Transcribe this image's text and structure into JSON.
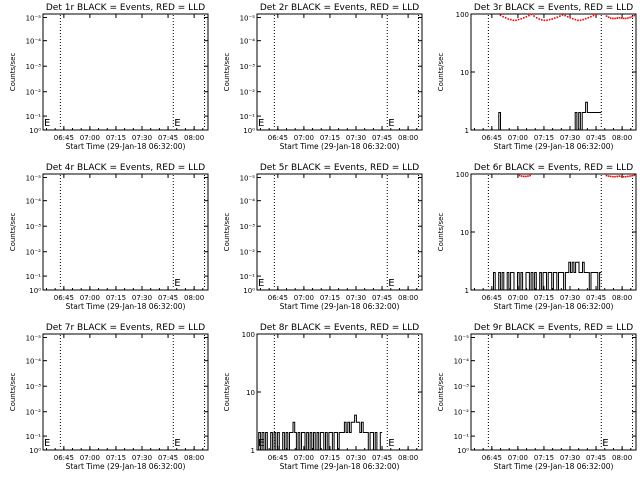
{
  "figure": {
    "background": "#ffffff",
    "colors": {
      "events": "#000000",
      "lld": "#ff0000"
    }
  },
  "chart_data": [
    {
      "type": "line",
      "title": "Det 1r BLACK = Events, RED = LLD",
      "xlabel": "Start Time (29-Jan-18 06:32:00)",
      "ylabel": "Counts/sec",
      "scale": "log",
      "yticks": [
        {
          "label": "10⁰",
          "frac": 0
        },
        {
          "label": "10⁻¹",
          "frac": 0.12
        },
        {
          "label": "10⁻²",
          "frac": 0.33
        },
        {
          "label": "10⁻³",
          "frac": 0.55
        },
        {
          "label": "10⁻⁴",
          "frac": 0.77
        },
        {
          "label": "10⁻⁵",
          "frac": 0.97
        }
      ],
      "xticks": [
        "06:45",
        "07:00",
        "07:15",
        "07:30",
        "07:45",
        "08:00"
      ],
      "xlim": [
        "06:33",
        "08:08"
      ],
      "dotted_lines": [
        "06:43",
        "07:48",
        "08:06"
      ],
      "markers": [
        {
          "label": "E",
          "x": "06:33"
        },
        {
          "label": "E",
          "x": "07:48"
        }
      ],
      "series": []
    },
    {
      "type": "line",
      "title": "Det 2r BLACK = Events, RED = LLD",
      "xlabel": "Start Time (29-Jan-18 06:32:00)",
      "ylabel": "Counts/sec",
      "scale": "log",
      "yticks": [
        {
          "label": "10⁰",
          "frac": 0
        },
        {
          "label": "10⁻¹",
          "frac": 0.12
        },
        {
          "label": "10⁻²",
          "frac": 0.33
        },
        {
          "label": "10⁻³",
          "frac": 0.55
        },
        {
          "label": "10⁻⁴",
          "frac": 0.77
        },
        {
          "label": "10⁻⁵",
          "frac": 0.97
        }
      ],
      "xticks": [
        "06:45",
        "07:00",
        "07:15",
        "07:30",
        "07:45",
        "08:00"
      ],
      "xlim": [
        "06:33",
        "08:08"
      ],
      "dotted_lines": [
        "06:43",
        "07:48",
        "08:06"
      ],
      "markers": [
        {
          "label": "E",
          "x": "06:33"
        },
        {
          "label": "E",
          "x": "07:48"
        }
      ],
      "series": []
    },
    {
      "type": "line",
      "title": "Det 3r BLACK = Events, RED = LLD",
      "xlabel": "Start Time (29-Jan-18 06:32:00)",
      "ylabel": "Counts/sec",
      "scale": "log",
      "yticks": [
        {
          "label": "1",
          "frac": 0
        },
        {
          "label": "10",
          "frac": 0.5
        },
        {
          "label": "100",
          "frac": 1
        }
      ],
      "xticks": [
        "06:45",
        "07:00",
        "07:15",
        "07:30",
        "07:45",
        "08:00"
      ],
      "xlim": [
        "06:33",
        "08:08"
      ],
      "dotted_lines": [
        "06:43",
        "07:48",
        "08:06"
      ],
      "markers": [],
      "series": [
        {
          "kind": "steps",
          "color": "#000000",
          "x0": "06:47",
          "x1": "07:48",
          "values": [
            1,
            1,
            2,
            1,
            1,
            1,
            1,
            1,
            1,
            1,
            1,
            1,
            1,
            1,
            1,
            1,
            1,
            1,
            1,
            1,
            1,
            1,
            1,
            1,
            1,
            1,
            1,
            1,
            1,
            1,
            1,
            1,
            1,
            1,
            1,
            1,
            1,
            1,
            1,
            1,
            1,
            1,
            1,
            1,
            1,
            1,
            2,
            1,
            2,
            1,
            2,
            2,
            3,
            2,
            2,
            2,
            2,
            2,
            2,
            2,
            2
          ]
        },
        {
          "kind": "dots",
          "color": "#ff0000",
          "x0": "06:50",
          "x1": "07:45",
          "values": [
            95,
            90,
            86,
            82,
            80,
            78,
            78,
            80,
            83,
            86,
            90,
            94,
            98,
            92,
            86,
            82,
            79,
            78,
            78,
            80,
            82,
            85,
            88,
            92,
            96,
            94,
            90,
            86,
            83,
            80,
            78,
            78,
            80,
            83,
            86,
            90,
            94,
            97
          ]
        },
        {
          "kind": "dots",
          "color": "#ff0000",
          "x0": "07:51",
          "x1": "08:07",
          "values": [
            92,
            88,
            85,
            84,
            84,
            85,
            86,
            85,
            84,
            84,
            85,
            87,
            90,
            94
          ]
        }
      ]
    },
    {
      "type": "line",
      "title": "Det 4r BLACK = Events, RED = LLD",
      "xlabel": "Start Time (29-Jan-18 06:32:00)",
      "ylabel": "Counts/sec",
      "scale": "log",
      "yticks": [
        {
          "label": "10⁰",
          "frac": 0
        },
        {
          "label": "10⁻¹",
          "frac": 0.12
        },
        {
          "label": "10⁻²",
          "frac": 0.33
        },
        {
          "label": "10⁻³",
          "frac": 0.55
        },
        {
          "label": "10⁻⁴",
          "frac": 0.77
        },
        {
          "label": "10⁻⁵",
          "frac": 0.97
        }
      ],
      "xticks": [
        "06:45",
        "07:00",
        "07:15",
        "07:30",
        "07:45",
        "08:00"
      ],
      "xlim": [
        "06:33",
        "08:08"
      ],
      "dotted_lines": [
        "06:43",
        "07:48",
        "08:06"
      ],
      "markers": [
        {
          "label": "E",
          "x": "07:48"
        }
      ],
      "series": []
    },
    {
      "type": "line",
      "title": "Det 5r BLACK = Events, RED = LLD",
      "xlabel": "Start Time (29-Jan-18 06:32:00)",
      "ylabel": "Counts/sec",
      "scale": "log",
      "yticks": [
        {
          "label": "10⁰",
          "frac": 0
        },
        {
          "label": "10⁻¹",
          "frac": 0.12
        },
        {
          "label": "10⁻²",
          "frac": 0.33
        },
        {
          "label": "10⁻³",
          "frac": 0.55
        },
        {
          "label": "10⁻⁴",
          "frac": 0.77
        },
        {
          "label": "10⁻⁵",
          "frac": 0.97
        }
      ],
      "xticks": [
        "06:45",
        "07:00",
        "07:15",
        "07:30",
        "07:45",
        "08:00"
      ],
      "xlim": [
        "06:33",
        "08:08"
      ],
      "dotted_lines": [
        "06:43",
        "07:48",
        "08:06"
      ],
      "markers": [
        {
          "label": "E",
          "x": "06:33"
        },
        {
          "label": "E",
          "x": "07:48"
        }
      ],
      "series": []
    },
    {
      "type": "line",
      "title": "Det 6r BLACK = Events, RED = LLD",
      "xlabel": "Start Time (29-Jan-18 06:32:00)",
      "ylabel": "Counts/sec",
      "scale": "log",
      "yticks": [
        {
          "label": "1",
          "frac": 0
        },
        {
          "label": "10",
          "frac": 0.5
        },
        {
          "label": "100",
          "frac": 1
        }
      ],
      "xticks": [
        "06:45",
        "07:00",
        "07:15",
        "07:30",
        "07:45",
        "08:00"
      ],
      "xlim": [
        "06:33",
        "08:08"
      ],
      "dotted_lines": [
        "06:43",
        "07:48",
        "08:06"
      ],
      "markers": [],
      "series": [
        {
          "kind": "steps",
          "color": "#000000",
          "x0": "06:44",
          "x1": "07:48",
          "values": [
            1,
            1,
            2,
            1,
            1,
            2,
            1,
            2,
            1,
            1,
            2,
            1,
            2,
            2,
            1,
            1,
            2,
            1,
            2,
            1,
            1,
            2,
            2,
            1,
            2,
            1,
            2,
            1,
            1,
            2,
            1,
            2,
            2,
            1,
            2,
            2,
            1,
            2,
            2,
            1,
            2,
            2,
            2,
            1,
            2,
            2,
            3,
            2,
            3,
            2,
            3,
            3,
            2,
            2,
            3,
            2,
            2,
            2,
            1,
            2,
            2,
            2,
            2,
            1,
            2
          ]
        },
        {
          "kind": "dots",
          "color": "#ff0000",
          "x0": "07:01",
          "x1": "07:07",
          "values": [
            94,
            92,
            91,
            91,
            92,
            94
          ]
        },
        {
          "kind": "dots",
          "color": "#ff0000",
          "x0": "07:51",
          "x1": "08:07",
          "values": [
            94,
            92,
            91,
            90,
            90,
            91,
            92,
            91,
            90,
            90,
            91,
            92,
            93,
            95
          ]
        }
      ]
    },
    {
      "type": "line",
      "title": "Det 7r BLACK = Events, RED = LLD",
      "xlabel": "Start Time (29-Jan-18 06:32:00)",
      "ylabel": "Counts/sec",
      "scale": "log",
      "yticks": [
        {
          "label": "10⁰",
          "frac": 0
        },
        {
          "label": "10⁻¹",
          "frac": 0.12
        },
        {
          "label": "10⁻²",
          "frac": 0.33
        },
        {
          "label": "10⁻³",
          "frac": 0.55
        },
        {
          "label": "10⁻⁴",
          "frac": 0.77
        },
        {
          "label": "10⁻⁵",
          "frac": 0.97
        }
      ],
      "xticks": [
        "06:45",
        "07:00",
        "07:15",
        "07:30",
        "07:45",
        "08:00"
      ],
      "xlim": [
        "06:33",
        "08:08"
      ],
      "dotted_lines": [
        "06:43",
        "07:48",
        "08:06"
      ],
      "markers": [
        {
          "label": "E",
          "x": "06:33"
        },
        {
          "label": "E",
          "x": "07:48"
        }
      ],
      "series": []
    },
    {
      "type": "line",
      "title": "Det 8r BLACK = Events, RED = LLD",
      "xlabel": "Start Time (29-Jan-18 06:32:00)",
      "ylabel": "Counts/sec",
      "scale": "log",
      "yticks": [
        {
          "label": "1",
          "frac": 0
        },
        {
          "label": "10",
          "frac": 0.5
        },
        {
          "label": "100",
          "frac": 1
        }
      ],
      "xticks": [
        "06:45",
        "07:00",
        "07:15",
        "07:30",
        "07:45",
        "08:00"
      ],
      "xlim": [
        "06:33",
        "08:08"
      ],
      "dotted_lines": [
        "06:43",
        "07:48",
        "08:06"
      ],
      "markers": [
        {
          "label": "E",
          "x": "06:33"
        },
        {
          "label": "E",
          "x": "07:48"
        }
      ],
      "series": [
        {
          "kind": "steps",
          "color": "#000000",
          "x0": "06:33",
          "x1": "07:45",
          "values": [
            1,
            2,
            1,
            2,
            1,
            2,
            1,
            1,
            2,
            1,
            2,
            1,
            2,
            1,
            1,
            2,
            1,
            2,
            1,
            2,
            2,
            3,
            2,
            1,
            2,
            1,
            2,
            2,
            1,
            2,
            1,
            2,
            1,
            2,
            1,
            2,
            1,
            2,
            2,
            1,
            2,
            1,
            2,
            2,
            1,
            2,
            2,
            1,
            2,
            2,
            2,
            3,
            2,
            3,
            2,
            3,
            3,
            4,
            3,
            3,
            2,
            3,
            2,
            2,
            2,
            1,
            2,
            2,
            1,
            2,
            1,
            1,
            2
          ]
        }
      ]
    },
    {
      "type": "line",
      "title": "Det 9r BLACK = Events, RED = LLD",
      "xlabel": "Start Time (29-Jan-18 06:32:00)",
      "ylabel": "Counts/sec",
      "scale": "log",
      "yticks": [
        {
          "label": "10⁰",
          "frac": 0
        },
        {
          "label": "10⁻¹",
          "frac": 0.12
        },
        {
          "label": "10⁻²",
          "frac": 0.33
        },
        {
          "label": "10⁻³",
          "frac": 0.55
        },
        {
          "label": "10⁻⁴",
          "frac": 0.77
        },
        {
          "label": "10⁻⁵",
          "frac": 0.97
        }
      ],
      "xticks": [
        "06:45",
        "07:00",
        "07:15",
        "07:30",
        "07:45",
        "08:00"
      ],
      "xlim": [
        "06:33",
        "08:08"
      ],
      "dotted_lines": [
        "06:43",
        "07:48",
        "08:06"
      ],
      "markers": [
        {
          "label": "E",
          "x": "07:48"
        }
      ],
      "series": []
    }
  ]
}
